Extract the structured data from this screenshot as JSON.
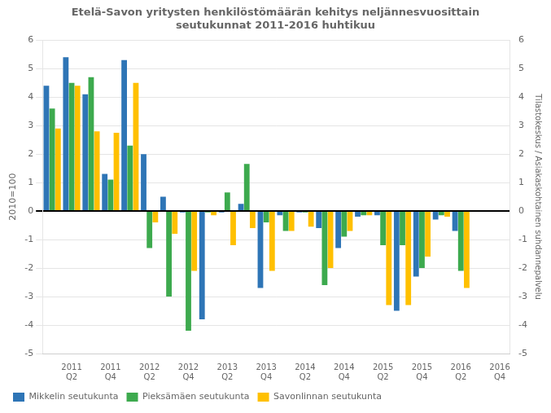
{
  "chart_data": {
    "type": "bar",
    "title": "Etelä-Savon yritysten henkilöstömäärän kehitys neljännesvuosittain\nseutukunnat 2011-2016 huhtikuu",
    "ylabel": "2010=100",
    "y2label": "Tilastokeskus / Asiakaskohtainen suhdannepalvelu",
    "categories": [
      null,
      "2011\nQ2",
      null,
      "2011\nQ4",
      null,
      "2012\nQ2",
      null,
      "2012\nQ4",
      null,
      "2013\nQ2",
      null,
      "2013\nQ4",
      null,
      "2014\nQ2",
      null,
      "2014\nQ4",
      null,
      "2015\nQ2",
      null,
      "2015\nQ4",
      null,
      "2016\nQ2",
      null,
      "2016\nQ4"
    ],
    "series": [
      {
        "name": "Mikkelin seutukunta",
        "color": "#2e75b6",
        "values": [
          4.4,
          5.4,
          4.1,
          1.3,
          5.3,
          2.0,
          0.5,
          -0.05,
          -3.8,
          -0.05,
          0.25,
          -2.7,
          -0.15,
          -0.05,
          -0.6,
          -1.3,
          -0.2,
          -0.15,
          -3.5,
          -2.3,
          -0.3,
          -0.7,
          null,
          null
        ]
      },
      {
        "name": "Pieksämäen seutukunta",
        "color": "#3daa4e",
        "values": [
          3.6,
          4.5,
          4.7,
          1.1,
          2.3,
          -1.3,
          -3.0,
          -4.2,
          -0.05,
          0.65,
          1.65,
          -0.4,
          -0.7,
          -0.05,
          -2.6,
          -0.9,
          -0.15,
          -1.2,
          -1.2,
          -2.0,
          -0.15,
          -2.1,
          null,
          null
        ]
      },
      {
        "name": "Savonlinnan seutukunta",
        "color": "#ffc000",
        "values": [
          2.9,
          4.4,
          2.8,
          2.75,
          4.5,
          -0.4,
          -0.8,
          -2.1,
          -0.15,
          -1.2,
          -0.6,
          -2.1,
          -0.7,
          -0.55,
          -2.0,
          -0.7,
          -0.15,
          -3.3,
          -3.3,
          -1.6,
          -0.2,
          -2.7,
          null,
          null
        ]
      }
    ],
    "ylim": [
      -5,
      6
    ],
    "yticks": [
      -5,
      -4,
      -3,
      -2,
      -1,
      0,
      1,
      2,
      3,
      4,
      5,
      6
    ],
    "y2lim": [
      -5,
      6
    ],
    "y2ticks": [
      -5,
      -4,
      -3,
      -2,
      -1,
      0,
      1,
      2,
      3,
      4,
      5,
      6
    ],
    "grid": true,
    "legend": "bottom"
  }
}
